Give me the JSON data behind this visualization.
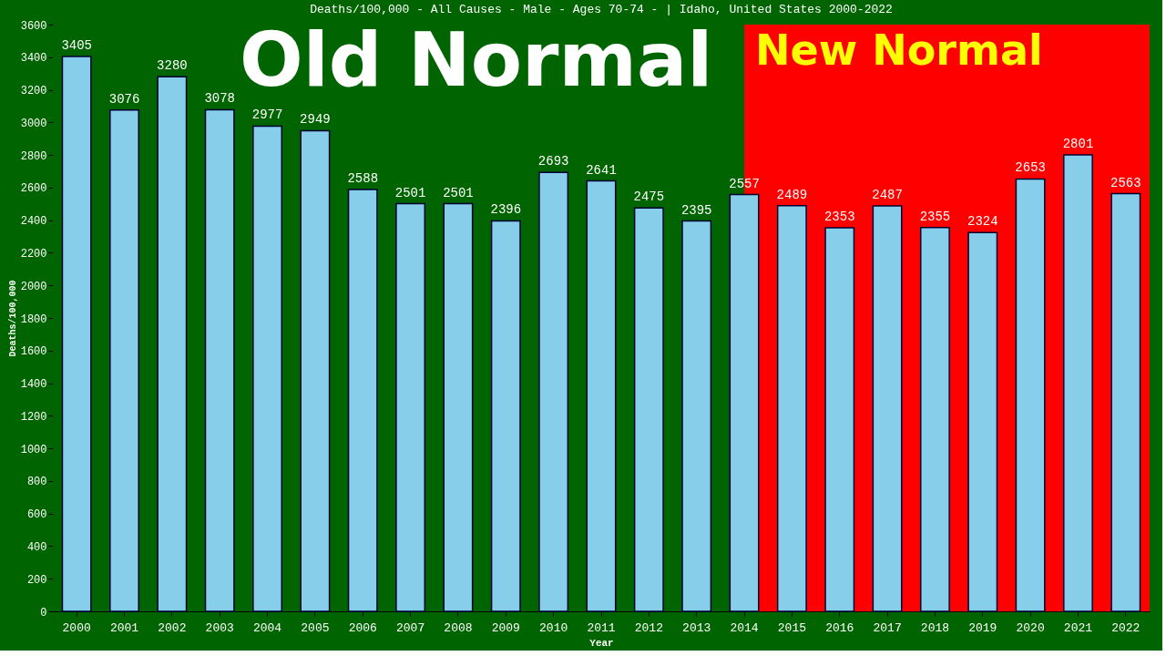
{
  "chart_data": {
    "type": "bar",
    "title": "Deaths/100,000 - All Causes - Male - Ages 70-74 -  | Idaho, United States 2000-2022",
    "xlabel": "Year",
    "ylabel": "Deaths/100,000",
    "categories": [
      "2000",
      "2001",
      "2002",
      "2003",
      "2004",
      "2005",
      "2006",
      "2007",
      "2008",
      "2009",
      "2010",
      "2011",
      "2012",
      "2013",
      "2014",
      "2015",
      "2016",
      "2017",
      "2018",
      "2019",
      "2020",
      "2021",
      "2022"
    ],
    "values": [
      3405,
      3076,
      3280,
      3078,
      2977,
      2949,
      2588,
      2501,
      2501,
      2396,
      2693,
      2641,
      2475,
      2395,
      2557,
      2489,
      2353,
      2487,
      2355,
      2324,
      2653,
      2801,
      2563
    ],
    "color": "#87ceeb",
    "ylim": [
      0,
      3600
    ],
    "yticks": [
      0,
      200,
      400,
      600,
      800,
      1000,
      1200,
      1400,
      1600,
      1800,
      2000,
      2200,
      2400,
      2600,
      2800,
      3000,
      3200,
      3400,
      3600
    ],
    "bands": [
      {
        "axis": "x",
        "from": "2000",
        "to": "2014",
        "label": "Old Normal",
        "color": "#006400"
      },
      {
        "axis": "x",
        "from": "2014",
        "to": "2022",
        "label": "New Normal",
        "color": "#ff0000"
      }
    ],
    "data_labels": true,
    "grid": false
  }
}
